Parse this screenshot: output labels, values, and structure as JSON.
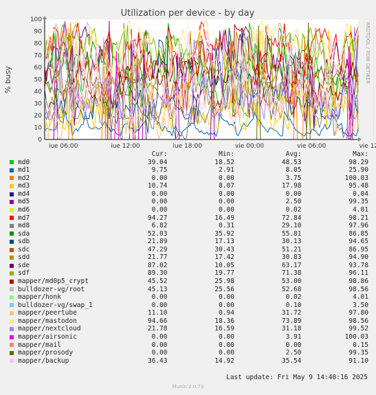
{
  "title": "Utilization per device - by day",
  "ylabel": "% busy",
  "side_text": "RRDTOOL / TOBI OETIKER",
  "legend_headers": {
    "cur": "Cur:",
    "min": "Min:",
    "avg": "Avg:",
    "max": "Max:"
  },
  "last_update": "Last update: Fri May  9 14:40:16 2025",
  "munin_version": "Munin 2.0.73",
  "chart_data": {
    "type": "line",
    "title": "Utilization per device - by day",
    "ylabel": "% busy",
    "ylim": [
      0,
      100
    ],
    "yticks": [
      0,
      10,
      20,
      30,
      40,
      50,
      60,
      70,
      80,
      90,
      100
    ],
    "x_ticks": [
      "jue 06:00",
      "jue 12:00",
      "jue 18:00",
      "vie 00:00",
      "vie 06:00",
      "vie 12:00"
    ],
    "x_hours": [
      4.2,
      34.5
    ],
    "x_tick_hours": [
      6,
      12,
      18,
      24,
      30,
      36
    ],
    "grid": true,
    "series": [
      {
        "name": "md0",
        "color": "#00CC00",
        "cur": 39.04,
        "min": 18.52,
        "avg": 48.53,
        "max": 98.29
      },
      {
        "name": "md1",
        "color": "#0066B3",
        "cur": 9.75,
        "min": 2.91,
        "avg": 8.05,
        "max": 25.9
      },
      {
        "name": "md2",
        "color": "#FF8000",
        "cur": 0.0,
        "min": 0.0,
        "avg": 3.75,
        "max": 100.03
      },
      {
        "name": "md3",
        "color": "#FFCC00",
        "cur": 10.74,
        "min": 8.07,
        "avg": 17.98,
        "max": 95.48
      },
      {
        "name": "md4",
        "color": "#330099",
        "cur": 0.0,
        "min": 0.0,
        "avg": 0.0,
        "max": 0.04
      },
      {
        "name": "md5",
        "color": "#990099",
        "cur": 0.0,
        "min": 0.0,
        "avg": 2.5,
        "max": 99.35
      },
      {
        "name": "md6",
        "color": "#CCFF00",
        "cur": 0.0,
        "min": 0.0,
        "avg": 0.02,
        "max": 4.01
      },
      {
        "name": "md7",
        "color": "#FF0000",
        "cur": 94.27,
        "min": 16.49,
        "avg": 72.84,
        "max": 98.21
      },
      {
        "name": "md8",
        "color": "#808080",
        "cur": 6.82,
        "min": 0.31,
        "avg": 29.1,
        "max": 97.96
      },
      {
        "name": "sda",
        "color": "#008F00",
        "cur": 52.03,
        "min": 35.92,
        "avg": 55.81,
        "max": 86.85
      },
      {
        "name": "sdb",
        "color": "#00487D",
        "cur": 21.89,
        "min": 17.13,
        "avg": 30.13,
        "max": 94.65
      },
      {
        "name": "sdc",
        "color": "#B35A00",
        "cur": 47.29,
        "min": 30.43,
        "avg": 51.21,
        "max": 86.95
      },
      {
        "name": "sdd",
        "color": "#B38F00",
        "cur": 21.77,
        "min": 17.42,
        "avg": 30.83,
        "max": 94.9
      },
      {
        "name": "sde",
        "color": "#6B006B",
        "cur": 87.02,
        "min": 10.05,
        "avg": 63.17,
        "max": 93.78
      },
      {
        "name": "sdf",
        "color": "#8FB300",
        "cur": 89.3,
        "min": 19.77,
        "avg": 71.38,
        "max": 96.11
      },
      {
        "name": "mapper/md0p5_crypt",
        "color": "#B30000",
        "cur": 45.52,
        "min": 25.98,
        "avg": 53.0,
        "max": 98.86
      },
      {
        "name": "bulldozer-vg/root",
        "color": "#BEBEBE",
        "cur": 45.13,
        "min": 25.56,
        "avg": 52.68,
        "max": 98.56
      },
      {
        "name": "mapper/honk",
        "color": "#80FF80",
        "cur": 0.0,
        "min": 0.0,
        "avg": 0.02,
        "max": 4.01
      },
      {
        "name": "bulldozer-vg/swap_1",
        "color": "#80C9FF",
        "cur": 0.0,
        "min": 0.0,
        "avg": 0.1,
        "max": 3.5
      },
      {
        "name": "mapper/peertube",
        "color": "#FFC080",
        "cur": 11.1,
        "min": 0.94,
        "avg": 31.72,
        "max": 97.8
      },
      {
        "name": "mapper/mastodon",
        "color": "#FFE680",
        "cur": 94.66,
        "min": 18.36,
        "avg": 73.89,
        "max": 98.56
      },
      {
        "name": "mapper/nextcloud",
        "color": "#AA80FF",
        "cur": 21.78,
        "min": 16.59,
        "avg": 31.18,
        "max": 99.52
      },
      {
        "name": "mapper/airsonic",
        "color": "#EE00CC",
        "cur": 0.0,
        "min": 0.0,
        "avg": 3.91,
        "max": 100.03
      },
      {
        "name": "mapper/mail",
        "color": "#FF8080",
        "cur": 0.0,
        "min": 0.0,
        "avg": 0.0,
        "max": 0.15
      },
      {
        "name": "mapper/prosody",
        "color": "#666600",
        "cur": 0.0,
        "min": 0.0,
        "avg": 2.5,
        "max": 99.35
      },
      {
        "name": "mapper/backup",
        "color": "#FFBFFF",
        "cur": 36.43,
        "min": 14.92,
        "avg": 35.54,
        "max": 91.1
      }
    ]
  }
}
